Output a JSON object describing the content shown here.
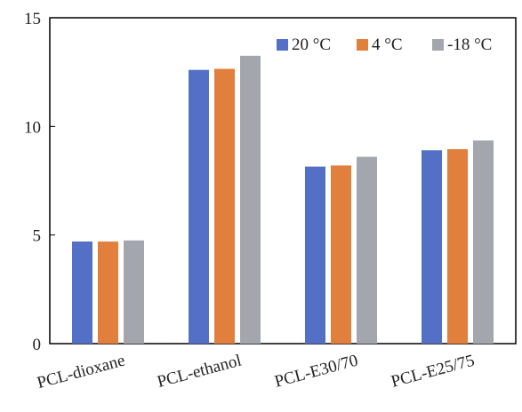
{
  "chart_data": {
    "type": "bar",
    "title": "",
    "xlabel": "",
    "ylabel": "",
    "ylim": [
      0,
      15
    ],
    "yticks": [
      0,
      5,
      10,
      15
    ],
    "grid": false,
    "legend_position": "top-right",
    "categories": [
      "PCL-dioxane",
      "PCL-ethanol",
      "PCL-E30/70",
      "PCL-E25/75"
    ],
    "series": [
      {
        "name": "20 °C",
        "color": "#5470C6",
        "values": [
          4.7,
          12.6,
          8.15,
          8.9
        ]
      },
      {
        "name": "4  °C",
        "color": "#E0803C",
        "values": [
          4.7,
          12.65,
          8.2,
          8.95
        ]
      },
      {
        "name": "-18  °C",
        "color": "#A3A6AD",
        "values": [
          4.75,
          13.25,
          8.6,
          9.35
        ]
      }
    ]
  }
}
